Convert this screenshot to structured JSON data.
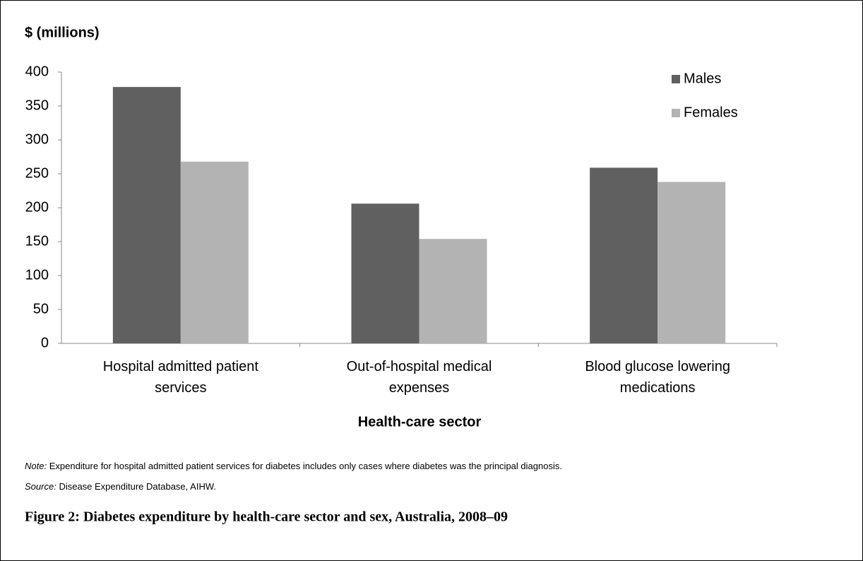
{
  "chart_data": {
    "type": "bar",
    "y_label": "$ (millions)",
    "x_label": "Health-care sector",
    "categories": [
      "Hospital admitted patient services",
      "Out-of-hospital medical expenses",
      "Blood glucose lowering medications"
    ],
    "series": [
      {
        "name": "Males",
        "color": "#606060",
        "values": [
          378,
          206,
          259
        ]
      },
      {
        "name": "Females",
        "color": "#b3b3b3",
        "values": [
          268,
          154,
          238
        ]
      }
    ],
    "ylim": [
      0,
      400
    ],
    "yticks": [
      0,
      50,
      100,
      150,
      200,
      250,
      300,
      350,
      400
    ],
    "grid": false,
    "legend": "top-right",
    "note_label": "Note:",
    "note": "Expenditure for hospital admitted patient services for diabetes includes only cases where diabetes was the principal diagnosis.",
    "source_label": "Source:",
    "source": "Disease Expenditure Database, AIHW.",
    "caption": "Figure 2: Diabetes expenditure by health-care sector and sex, Australia, 2008–09"
  }
}
